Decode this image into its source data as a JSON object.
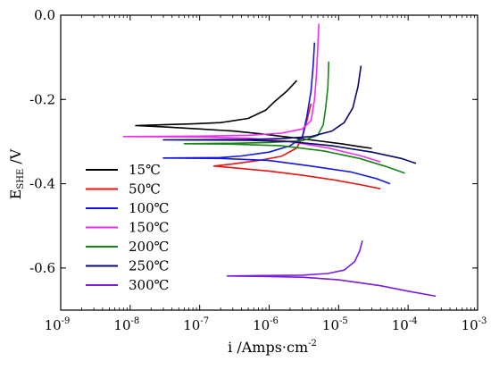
{
  "chart_data": {
    "type": "line",
    "title": "",
    "xlabel": {
      "base": "i /Amps·cm",
      "sup": "-2"
    },
    "ylabel": {
      "base": "E",
      "sub": "SHE",
      "suffix": " /V"
    },
    "xscale": "log",
    "xlim": [
      1e-09,
      0.001
    ],
    "ylim": [
      -0.7,
      0.0
    ],
    "x_ticks": [
      {
        "base": "10",
        "exp": "-9"
      },
      {
        "base": "10",
        "exp": "-8"
      },
      {
        "base": "10",
        "exp": "-7"
      },
      {
        "base": "10",
        "exp": "-6"
      },
      {
        "base": "10",
        "exp": "-5"
      },
      {
        "base": "10",
        "exp": "-4"
      },
      {
        "base": "10",
        "exp": "-3"
      }
    ],
    "y_ticks": [
      "0.0",
      "-0.2",
      "-0.4",
      "-0.6"
    ],
    "legend_position": "left",
    "grid": false,
    "series": [
      {
        "name": "15℃",
        "color": "#000000",
        "points": [
          [
            2.5e-06,
            -0.155
          ],
          [
            1.8e-06,
            -0.18
          ],
          [
            1.2e-06,
            -0.205
          ],
          [
            9e-07,
            -0.225
          ],
          [
            5e-07,
            -0.245
          ],
          [
            2e-07,
            -0.255
          ],
          [
            8e-08,
            -0.258
          ],
          [
            3e-08,
            -0.26
          ],
          [
            1.2e-08,
            -0.262
          ],
          [
            3e-08,
            -0.265
          ],
          [
            1e-07,
            -0.27
          ],
          [
            3e-07,
            -0.275
          ],
          [
            8e-07,
            -0.282
          ],
          [
            2e-06,
            -0.29
          ],
          [
            5e-06,
            -0.298
          ],
          [
            1.2e-05,
            -0.306
          ],
          [
            2e-05,
            -0.312
          ],
          [
            3e-05,
            -0.316
          ]
        ]
      },
      {
        "name": "50℃",
        "color": "#e8150f",
        "points": [
          [
            4e-06,
            -0.21
          ],
          [
            3.5e-06,
            -0.25
          ],
          [
            3e-06,
            -0.29
          ],
          [
            2.5e-06,
            -0.315
          ],
          [
            1.5e-06,
            -0.335
          ],
          [
            7e-07,
            -0.345
          ],
          [
            3e-07,
            -0.353
          ],
          [
            1.6e-07,
            -0.358
          ],
          [
            3e-07,
            -0.362
          ],
          [
            1e-06,
            -0.37
          ],
          [
            3e-06,
            -0.38
          ],
          [
            8e-06,
            -0.39
          ],
          [
            2e-05,
            -0.402
          ],
          [
            4e-05,
            -0.412
          ]
        ]
      },
      {
        "name": "100℃",
        "color": "#1515e6",
        "points": [
          [
            4.5e-06,
            -0.065
          ],
          [
            4.3e-06,
            -0.12
          ],
          [
            4e-06,
            -0.18
          ],
          [
            3.5e-06,
            -0.24
          ],
          [
            3e-06,
            -0.29
          ],
          [
            2e-06,
            -0.31
          ],
          [
            1e-06,
            -0.325
          ],
          [
            4e-07,
            -0.334
          ],
          [
            2e-07,
            -0.338
          ],
          [
            3e-08,
            -0.339
          ],
          [
            2e-07,
            -0.34
          ],
          [
            1e-06,
            -0.345
          ],
          [
            4e-06,
            -0.358
          ],
          [
            1.5e-05,
            -0.372
          ],
          [
            3.5e-05,
            -0.388
          ],
          [
            5.5e-05,
            -0.4
          ]
        ]
      },
      {
        "name": "150℃",
        "color": "#f02cf0",
        "points": [
          [
            5.2e-06,
            -0.02
          ],
          [
            5e-06,
            -0.08
          ],
          [
            4.8e-06,
            -0.14
          ],
          [
            4.5e-06,
            -0.2
          ],
          [
            4e-06,
            -0.25
          ],
          [
            3e-06,
            -0.27
          ],
          [
            1.5e-06,
            -0.28
          ],
          [
            5e-07,
            -0.285
          ],
          [
            1e-07,
            -0.287
          ],
          [
            8e-09,
            -0.288
          ],
          [
            1e-07,
            -0.289
          ],
          [
            5e-07,
            -0.292
          ],
          [
            2e-06,
            -0.3
          ],
          [
            7e-06,
            -0.315
          ],
          [
            2e-05,
            -0.333
          ],
          [
            4e-05,
            -0.348
          ]
        ]
      },
      {
        "name": "200℃",
        "color": "#158515",
        "points": [
          [
            7.2e-06,
            -0.11
          ],
          [
            7e-06,
            -0.17
          ],
          [
            6.5e-06,
            -0.22
          ],
          [
            6e-06,
            -0.26
          ],
          [
            5e-06,
            -0.285
          ],
          [
            3e-06,
            -0.298
          ],
          [
            1e-06,
            -0.302
          ],
          [
            3e-07,
            -0.304
          ],
          [
            6e-08,
            -0.305
          ],
          [
            3e-07,
            -0.306
          ],
          [
            1.5e-06,
            -0.31
          ],
          [
            6e-06,
            -0.322
          ],
          [
            2e-05,
            -0.34
          ],
          [
            5e-05,
            -0.36
          ],
          [
            9e-05,
            -0.375
          ]
        ]
      },
      {
        "name": "250℃",
        "color": "#0a0a6e",
        "points": [
          [
            2.1e-05,
            -0.12
          ],
          [
            1.9e-05,
            -0.17
          ],
          [
            1.6e-05,
            -0.22
          ],
          [
            1.2e-05,
            -0.255
          ],
          [
            8e-06,
            -0.275
          ],
          [
            4e-06,
            -0.288
          ],
          [
            1.5e-06,
            -0.293
          ],
          [
            5e-07,
            -0.295
          ],
          [
            3e-08,
            -0.296
          ],
          [
            5e-07,
            -0.297
          ],
          [
            2e-06,
            -0.3
          ],
          [
            8e-06,
            -0.31
          ],
          [
            3e-05,
            -0.325
          ],
          [
            8e-05,
            -0.34
          ],
          [
            0.00013,
            -0.352
          ]
        ]
      },
      {
        "name": "300℃",
        "color": "#7a1ce0",
        "points": [
          [
            2.2e-05,
            -0.535
          ],
          [
            2e-05,
            -0.56
          ],
          [
            1.7e-05,
            -0.585
          ],
          [
            1.2e-05,
            -0.605
          ],
          [
            7e-06,
            -0.613
          ],
          [
            3e-06,
            -0.617
          ],
          [
            8e-07,
            -0.618
          ],
          [
            2.5e-07,
            -0.619
          ],
          [
            8e-07,
            -0.62
          ],
          [
            3e-06,
            -0.622
          ],
          [
            1e-05,
            -0.628
          ],
          [
            4e-05,
            -0.642
          ],
          [
            0.0001,
            -0.655
          ],
          [
            0.00025,
            -0.667
          ]
        ]
      }
    ]
  }
}
